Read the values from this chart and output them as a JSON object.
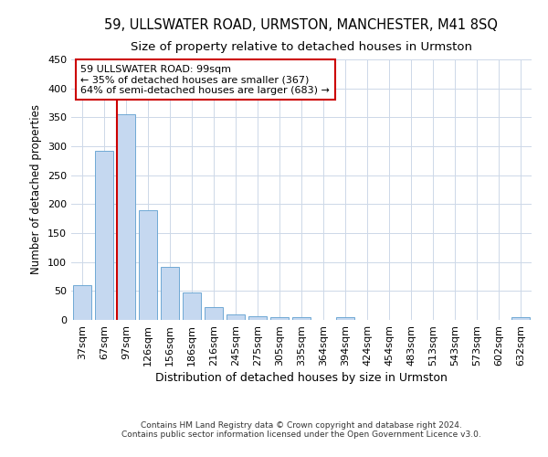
{
  "title1": "59, ULLSWATER ROAD, URMSTON, MANCHESTER, M41 8SQ",
  "title2": "Size of property relative to detached houses in Urmston",
  "xlabel": "Distribution of detached houses by size in Urmston",
  "ylabel": "Number of detached properties",
  "footer": "Contains HM Land Registry data © Crown copyright and database right 2024.\nContains public sector information licensed under the Open Government Licence v3.0.",
  "categories": [
    "37sqm",
    "67sqm",
    "97sqm",
    "126sqm",
    "156sqm",
    "186sqm",
    "216sqm",
    "245sqm",
    "275sqm",
    "305sqm",
    "335sqm",
    "364sqm",
    "394sqm",
    "424sqm",
    "454sqm",
    "483sqm",
    "513sqm",
    "543sqm",
    "573sqm",
    "602sqm",
    "632sqm"
  ],
  "values": [
    60,
    292,
    355,
    190,
    92,
    47,
    22,
    10,
    6,
    5,
    5,
    0,
    5,
    0,
    0,
    0,
    0,
    0,
    0,
    0,
    5
  ],
  "bar_color": "#c5d8f0",
  "bar_edge_color": "#6fa8d4",
  "vline_color": "#cc0000",
  "annotation_text": "59 ULLSWATER ROAD: 99sqm\n← 35% of detached houses are smaller (367)\n64% of semi-detached houses are larger (683) →",
  "annotation_box_color": "#ffffff",
  "annotation_box_edge": "#cc0000",
  "ylim": [
    0,
    450
  ],
  "background_color": "#ffffff",
  "grid_color": "#cdd8e8",
  "title1_fontsize": 10.5,
  "title2_fontsize": 9.5,
  "xlabel_fontsize": 9,
  "ylabel_fontsize": 8.5,
  "tick_fontsize": 8,
  "annot_fontsize": 8,
  "footer_fontsize": 6.5
}
